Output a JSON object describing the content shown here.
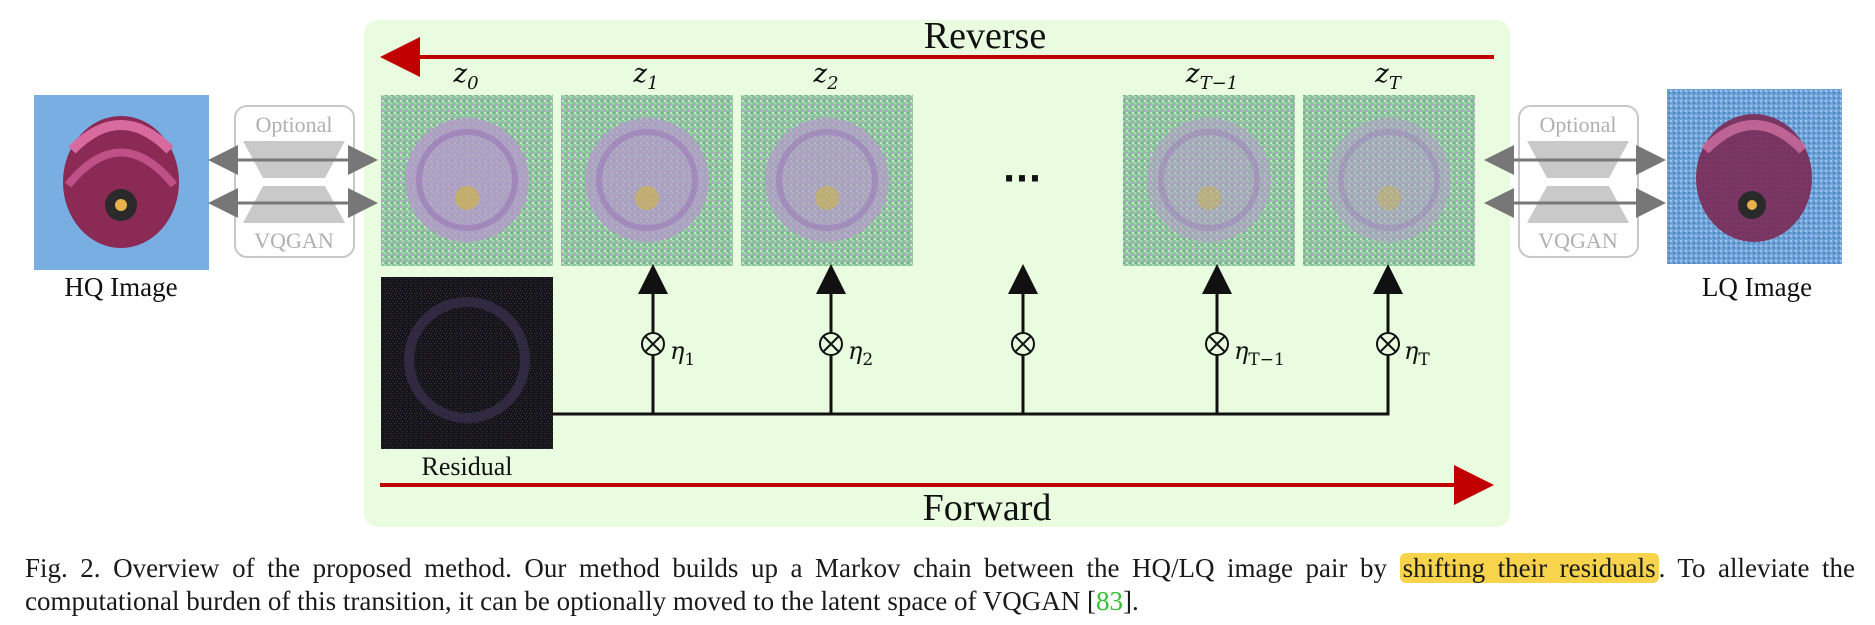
{
  "colors": {
    "panel": "#e9fce0",
    "reverse_arrow": "#c00000",
    "forward_arrow": "#c00000",
    "latent": "#8cc79c",
    "optional_gray": "#b7b7b7",
    "highlight": "#f7d44c",
    "reference": "#33c233"
  },
  "diagram": {
    "reverse_label": "Reverse",
    "forward_label": "Forward",
    "hq_label": "HQ Image",
    "lq_label": "LQ Image",
    "residual_label": "Residual",
    "ellipsis": "···",
    "optional_label": "Optional",
    "vqgan_label": "VQGAN",
    "states": [
      {
        "base": "z",
        "sub": "0"
      },
      {
        "base": "z",
        "sub": "1"
      },
      {
        "base": "z",
        "sub": "2"
      },
      {
        "base": "z",
        "sub": "T−1"
      },
      {
        "base": "z",
        "sub": "T"
      }
    ],
    "etas": [
      {
        "base": "η",
        "sub": "1"
      },
      {
        "base": "η",
        "sub": "2"
      },
      {
        "base": "",
        "sub": ""
      },
      {
        "base": "η",
        "sub": "T−1"
      },
      {
        "base": "η",
        "sub": "T"
      }
    ]
  },
  "caption": {
    "prefix": "Fig. 2.  Overview of the proposed method. Our method builds up a Markov chain between the HQ/LQ image pair by ",
    "highlight": "shifting their residuals",
    "middle": ". To alleviate the computational burden of this transition, it can be optionally moved to the latent space of VQGAN [",
    "reference": "83",
    "suffix": "]."
  }
}
